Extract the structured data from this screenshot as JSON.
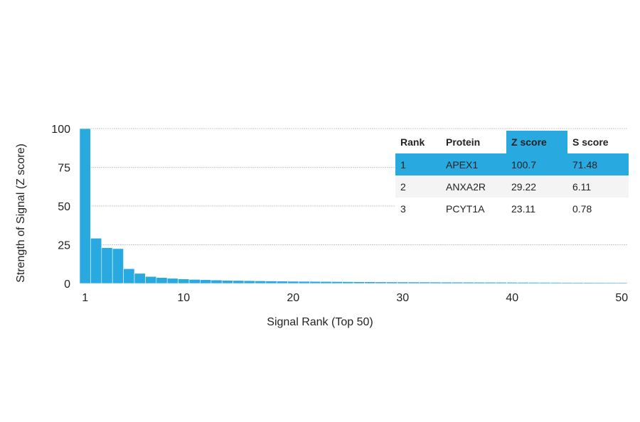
{
  "chart_data": {
    "type": "bar",
    "xlabel": "Signal Rank (Top 50)",
    "ylabel": "Strength of Signal (Z score)",
    "ylim": [
      0,
      100
    ],
    "xlim": [
      1,
      50
    ],
    "yticks": [
      0,
      25,
      50,
      75,
      100
    ],
    "xticks": [
      1,
      10,
      20,
      30,
      40,
      50
    ],
    "grid": true,
    "accent_color": "#28a9e0",
    "ranks": [
      1,
      2,
      3,
      4,
      5,
      6,
      7,
      8,
      9,
      10,
      11,
      12,
      13,
      14,
      15,
      16,
      17,
      18,
      19,
      20,
      21,
      22,
      23,
      24,
      25,
      26,
      27,
      28,
      29,
      30,
      31,
      32,
      33,
      34,
      35,
      36,
      37,
      38,
      39,
      40,
      41,
      42,
      43,
      44,
      45,
      46,
      47,
      48,
      49,
      50
    ],
    "values": [
      100.7,
      29.22,
      23.11,
      22.5,
      9.5,
      6.5,
      4.5,
      3.8,
      3.3,
      2.9,
      2.6,
      2.4,
      2.2,
      2.0,
      1.9,
      1.8,
      1.7,
      1.6,
      1.5,
      1.4,
      1.35,
      1.3,
      1.25,
      1.2,
      1.15,
      1.1,
      1.05,
      1.0,
      0.98,
      0.95,
      0.92,
      0.9,
      0.88,
      0.86,
      0.84,
      0.82,
      0.8,
      0.78,
      0.76,
      0.74,
      0.72,
      0.7,
      0.68,
      0.66,
      0.64,
      0.62,
      0.6,
      0.58,
      0.56,
      0.55
    ]
  },
  "table": {
    "headers": [
      "Rank",
      "Protein",
      "Z score",
      "S score"
    ],
    "highlight_color": "#28a9e0",
    "rows": [
      [
        "1",
        "APEX1",
        "100.7",
        "71.48"
      ],
      [
        "2",
        "ANXA2R",
        "29.22",
        "6.11"
      ],
      [
        "3",
        "PCYT1A",
        "23.11",
        "0.78"
      ]
    ]
  }
}
